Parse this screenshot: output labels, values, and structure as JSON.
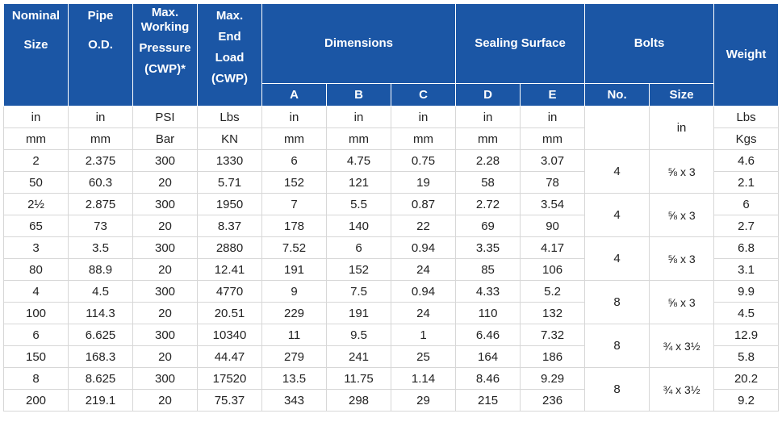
{
  "headers": {
    "nominal_size": [
      "Nominal",
      "Size"
    ],
    "pipe_od": [
      "Pipe",
      "O.D."
    ],
    "max_wp": [
      "Max.",
      "Working",
      "Pressure",
      "(CWP)*"
    ],
    "max_end_load": [
      "Max.",
      "End",
      "Load",
      "(CWP)"
    ],
    "dimensions": "Dimensions",
    "sealing_surface": "Sealing Surface",
    "bolts": "Bolts",
    "weight": "Weight",
    "sub": {
      "a": "A",
      "b": "B",
      "c": "C",
      "d": "D",
      "e": "E",
      "no": "No.",
      "size": "Size"
    }
  },
  "units": [
    [
      "in",
      "in",
      "PSI",
      "Lbs",
      "in",
      "in",
      "in",
      "in",
      "in"
    ],
    [
      "mm",
      "mm",
      "Bar",
      "KN",
      "mm",
      "mm",
      "mm",
      "mm",
      "mm"
    ]
  ],
  "bolt_units": "in",
  "weight_units": [
    "Lbs",
    "Kgs"
  ],
  "rows": [
    {
      "imp": [
        "2",
        "2.375",
        "300",
        "1330",
        "6",
        "4.75",
        "0.75",
        "2.28",
        "3.07"
      ],
      "met": [
        "50",
        "60.3",
        "20",
        "5.71",
        "152",
        "121",
        "19",
        "58",
        "78"
      ],
      "bolt_no": "4",
      "bolt_size": "⅝ x 3",
      "wt_imp": "4.6",
      "wt_met": "2.1"
    },
    {
      "imp": [
        "2½",
        "2.875",
        "300",
        "1950",
        "7",
        "5.5",
        "0.87",
        "2.72",
        "3.54"
      ],
      "met": [
        "65",
        "73",
        "20",
        "8.37",
        "178",
        "140",
        "22",
        "69",
        "90"
      ],
      "bolt_no": "4",
      "bolt_size": "⅝ x 3",
      "wt_imp": "6",
      "wt_met": "2.7"
    },
    {
      "imp": [
        "3",
        "3.5",
        "300",
        "2880",
        "7.52",
        "6",
        "0.94",
        "3.35",
        "4.17"
      ],
      "met": [
        "80",
        "88.9",
        "20",
        "12.41",
        "191",
        "152",
        "24",
        "85",
        "106"
      ],
      "bolt_no": "4",
      "bolt_size": "⅝ x 3",
      "wt_imp": "6.8",
      "wt_met": "3.1"
    },
    {
      "imp": [
        "4",
        "4.5",
        "300",
        "4770",
        "9",
        "7.5",
        "0.94",
        "4.33",
        "5.2"
      ],
      "met": [
        "100",
        "114.3",
        "20",
        "20.51",
        "229",
        "191",
        "24",
        "110",
        "132"
      ],
      "bolt_no": "8",
      "bolt_size": "⅝ x 3",
      "wt_imp": "9.9",
      "wt_met": "4.5"
    },
    {
      "imp": [
        "6",
        "6.625",
        "300",
        "10340",
        "11",
        "9.5",
        "1",
        "6.46",
        "7.32"
      ],
      "met": [
        "150",
        "168.3",
        "20",
        "44.47",
        "279",
        "241",
        "25",
        "164",
        "186"
      ],
      "bolt_no": "8",
      "bolt_size": "¾ x 3½",
      "wt_imp": "12.9",
      "wt_met": "5.8"
    },
    {
      "imp": [
        "8",
        "8.625",
        "300",
        "17520",
        "13.5",
        "11.75",
        "1.14",
        "8.46",
        "9.29"
      ],
      "met": [
        "200",
        "219.1",
        "20",
        "75.37",
        "343",
        "298",
        "29",
        "215",
        "236"
      ],
      "bolt_no": "8",
      "bolt_size": "¾ x 3½",
      "wt_imp": "20.2",
      "wt_met": "9.2"
    }
  ]
}
